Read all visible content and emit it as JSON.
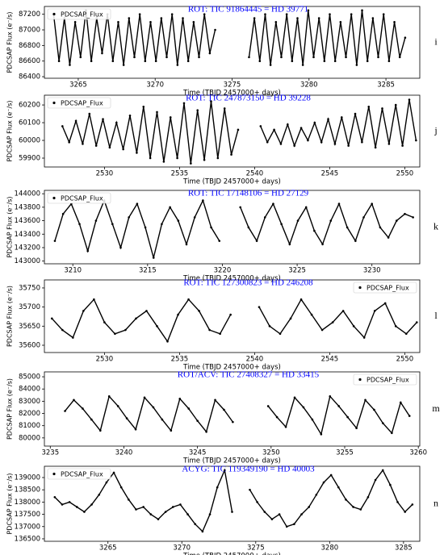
{
  "chart_data": [
    {
      "type": "line",
      "title": "ROT: TIC 91864445 = HD 39771",
      "title_color": "#0000ff",
      "panel_label": "i",
      "x_label": "Time (TBJD 2457000+ days)",
      "y_label": "PDCSAP Flux (e⁻/s)",
      "legend": "upper left",
      "xlim": [
        3262.8,
        3287.2
      ],
      "xticks": [
        3265,
        3270,
        3275,
        3280,
        3285
      ],
      "ylim": [
        86380,
        87300
      ],
      "yticks": [
        86400,
        86600,
        86800,
        87000,
        87200
      ],
      "x": [
        3263.4,
        3263.75,
        3264.1,
        3264.45,
        3264.8,
        3265.15,
        3265.5,
        3265.85,
        3266.2,
        3266.55,
        3266.9,
        3267.25,
        3267.6,
        3267.95,
        3268.3,
        3268.65,
        3269.0,
        3269.35,
        3269.7,
        3270.05,
        3270.4,
        3270.75,
        3271.1,
        3271.45,
        3271.8,
        3272.15,
        3272.5,
        3272.85,
        3273.2,
        3273.55,
        3273.9,
        3275.0,
        3276.1,
        3276.45,
        3276.8,
        3277.15,
        3277.5,
        3277.85,
        3278.2,
        3278.55,
        3278.9,
        3279.25,
        3279.6,
        3279.95,
        3280.3,
        3280.65,
        3281.0,
        3281.35,
        3281.7,
        3282.05,
        3282.4,
        3282.75,
        3283.1,
        3283.45,
        3283.8,
        3284.15,
        3284.5,
        3284.85,
        3285.2,
        3285.55,
        3285.9,
        3286.25
      ],
      "series": [
        {
          "name": "PDCSAP_Flux",
          "color": "#000000",
          "values": [
            87200,
            86600,
            87150,
            86550,
            87100,
            86650,
            87250,
            86600,
            87150,
            86700,
            87200,
            86600,
            87100,
            86550,
            87150,
            86650,
            87200,
            86600,
            87100,
            86600,
            87150,
            86650,
            87200,
            86550,
            87150,
            86600,
            87100,
            86650,
            87200,
            86700,
            87000,
            null,
            86650,
            87150,
            86600,
            87200,
            86550,
            87100,
            86650,
            87200,
            86600,
            87150,
            86550,
            87250,
            86650,
            87150,
            86600,
            87200,
            86600,
            87100,
            86650,
            87200,
            86550,
            87250,
            86600,
            87150,
            86650,
            87200,
            86600,
            87100,
            86650,
            86900
          ]
        }
      ]
    },
    {
      "type": "line",
      "title": "ROT: TIC 247873150 = HD 39228",
      "title_color": "#0000ff",
      "panel_label": "j",
      "x_label": "Time (TBJD 2457000+ days)",
      "y_label": "PDCSAP Flux (e⁻/s)",
      "legend": "upper left",
      "xlim": [
        2526.0,
        2551.0
      ],
      "xticks": [
        2530,
        2535,
        2540,
        2545,
        2550
      ],
      "ylim": [
        59850,
        60255
      ],
      "yticks": [
        59900,
        60000,
        60100,
        60200
      ],
      "x": [
        2527.2,
        2527.65,
        2528.1,
        2528.55,
        2529.0,
        2529.45,
        2529.9,
        2530.35,
        2530.8,
        2531.25,
        2531.7,
        2532.15,
        2532.6,
        2533.05,
        2533.5,
        2533.95,
        2534.4,
        2534.85,
        2535.3,
        2535.75,
        2536.2,
        2536.65,
        2537.1,
        2537.55,
        2538.0,
        2538.45,
        2538.9,
        2539.6,
        2540.4,
        2540.85,
        2541.3,
        2541.75,
        2542.2,
        2542.65,
        2543.1,
        2543.55,
        2544.0,
        2544.45,
        2544.9,
        2545.35,
        2545.8,
        2546.25,
        2546.7,
        2547.15,
        2547.6,
        2548.05,
        2548.5,
        2548.95,
        2549.4,
        2549.85,
        2550.3,
        2550.75
      ],
      "series": [
        {
          "name": "PDCSAP_Flux",
          "color": "#000000",
          "values": [
            60080,
            59990,
            60110,
            59980,
            60150,
            59970,
            60120,
            59960,
            60100,
            59950,
            60140,
            59930,
            60190,
            59900,
            60160,
            59880,
            60130,
            59900,
            60210,
            59870,
            60170,
            59890,
            60220,
            59900,
            60180,
            59920,
            60060,
            null,
            60080,
            59990,
            60060,
            59980,
            60090,
            59970,
            60070,
            60000,
            60100,
            59990,
            60120,
            59980,
            60130,
            59970,
            60150,
            59990,
            60190,
            59960,
            60180,
            59980,
            60200,
            59970,
            60230,
            60000
          ]
        }
      ]
    },
    {
      "type": "line",
      "title": "ROT: TIC 17148106 = HD 27129",
      "title_color": "#0000ff",
      "panel_label": "k",
      "x_label": "Time (TBJD 2457000+ days)",
      "y_label": "PDCSAP Flux (e⁻/s)",
      "legend": "upper left",
      "xlim": [
        3208.1,
        3233.2
      ],
      "xticks": [
        3210,
        3215,
        3220,
        3225,
        3230
      ],
      "ylim": [
        142960,
        144050
      ],
      "yticks": [
        143000,
        143200,
        143400,
        143600,
        143800,
        144000
      ],
      "x": [
        3208.8,
        3209.35,
        3209.9,
        3210.45,
        3211.0,
        3211.55,
        3212.1,
        3212.65,
        3213.2,
        3213.75,
        3214.3,
        3214.85,
        3215.4,
        3215.95,
        3216.5,
        3217.05,
        3217.6,
        3218.15,
        3218.7,
        3219.25,
        3219.8,
        3220.5,
        3221.2,
        3221.75,
        3222.3,
        3222.85,
        3223.4,
        3223.95,
        3224.5,
        3225.05,
        3225.6,
        3226.15,
        3226.7,
        3227.25,
        3227.8,
        3228.35,
        3228.9,
        3229.45,
        3230.0,
        3230.55,
        3231.1,
        3231.65,
        3232.2,
        3232.75
      ],
      "series": [
        {
          "name": "PDCSAP_Flux",
          "color": "#000000",
          "values": [
            143300,
            143700,
            143850,
            143550,
            143150,
            143600,
            143900,
            143550,
            143200,
            143650,
            143850,
            143500,
            143050,
            143550,
            143800,
            143600,
            143250,
            143650,
            143900,
            143500,
            143300,
            null,
            143800,
            143500,
            143300,
            143650,
            143850,
            143550,
            143250,
            143600,
            143800,
            143450,
            143250,
            143600,
            143850,
            143500,
            143300,
            143650,
            143850,
            143500,
            143350,
            143600,
            143700,
            143650
          ]
        }
      ]
    },
    {
      "type": "line",
      "title": "ROT: TIC 127300823 = HD 246208",
      "title_color": "#0000ff",
      "panel_label": "l",
      "x_label": "Time (TBJD 2457000+ days)",
      "y_label": "PDCSAP Flux (e⁻/s)",
      "legend": "upper right",
      "xlim": [
        2526.0,
        2551.0
      ],
      "xticks": [
        2530,
        2535,
        2540,
        2545,
        2550
      ],
      "ylim": [
        35581,
        35771
      ],
      "yticks": [
        35600,
        35650,
        35700,
        35750
      ],
      "x": [
        2526.5,
        2527.2,
        2527.9,
        2528.6,
        2529.3,
        2530.0,
        2530.7,
        2531.4,
        2532.1,
        2532.8,
        2533.5,
        2534.2,
        2534.9,
        2535.6,
        2536.3,
        2537.0,
        2537.7,
        2538.4,
        2539.5,
        2540.3,
        2541.0,
        2541.7,
        2542.4,
        2543.1,
        2543.8,
        2544.5,
        2545.2,
        2545.9,
        2546.6,
        2547.3,
        2548.0,
        2548.7,
        2549.4,
        2550.1,
        2550.8
      ],
      "series": [
        {
          "name": "PDCSAP_Flux",
          "color": "#000000",
          "values": [
            35670,
            35640,
            35620,
            35690,
            35720,
            35660,
            35630,
            35640,
            35670,
            35690,
            35650,
            35610,
            35680,
            35720,
            35690,
            35640,
            35630,
            35680,
            null,
            35700,
            35650,
            35630,
            35670,
            35720,
            35680,
            35640,
            35660,
            35690,
            35650,
            35620,
            35690,
            35710,
            35650,
            35630,
            35660
          ]
        }
      ]
    },
    {
      "type": "line",
      "title": "ROT/ACV: TIC 27408327 = HD 33415",
      "title_color": "#0000ff",
      "panel_label": "m",
      "x_label": "Time (TBJD 2457000+ days)",
      "y_label": "PDCSAP Flux (e⁻/s)",
      "legend": "upper right",
      "xlim": [
        3234.6,
        3260.1
      ],
      "xticks": [
        3235,
        3240,
        3245,
        3250,
        3255,
        3260
      ],
      "ylim": [
        79330,
        85400
      ],
      "yticks": [
        80000,
        81000,
        82000,
        83000,
        84000,
        85000
      ],
      "x": [
        3236.0,
        3236.6,
        3237.2,
        3237.8,
        3238.4,
        3239.0,
        3239.6,
        3240.2,
        3240.8,
        3241.4,
        3242.0,
        3242.6,
        3243.2,
        3243.8,
        3244.4,
        3245.0,
        3245.6,
        3246.2,
        3246.8,
        3247.4,
        3248.8,
        3249.8,
        3250.4,
        3251.0,
        3251.6,
        3252.2,
        3252.8,
        3253.4,
        3254.0,
        3254.6,
        3255.2,
        3255.8,
        3256.4,
        3257.0,
        3257.6,
        3258.2,
        3258.8,
        3259.4
      ],
      "series": [
        {
          "name": "PDCSAP_Flux",
          "color": "#000000",
          "values": [
            82200,
            83100,
            82400,
            81500,
            80600,
            83400,
            82600,
            81600,
            80700,
            83300,
            82500,
            81500,
            80600,
            83200,
            82400,
            81400,
            80500,
            83100,
            82300,
            81300,
            null,
            82600,
            81700,
            80900,
            83300,
            82500,
            81500,
            80300,
            83400,
            82600,
            81700,
            80800,
            83100,
            82300,
            81200,
            80400,
            82900,
            81800
          ]
        }
      ]
    },
    {
      "type": "line",
      "title": "ACYG: TIC 119349190 = HD 40003",
      "title_color": "#0000ff",
      "panel_label": "n",
      "x_label": "Time (TBJD 2457000+ days)",
      "y_label": "PDCSAP Flux (e⁻/s)",
      "legend": "upper left",
      "xlim": [
        3260.7,
        3286.1
      ],
      "xticks": [
        3265,
        3270,
        3275,
        3280,
        3285
      ],
      "ylim": [
        136400,
        139460
      ],
      "yticks": [
        136500,
        137000,
        137500,
        138000,
        138500,
        139000
      ],
      "x": [
        3261.4,
        3261.9,
        3262.4,
        3262.9,
        3263.4,
        3263.9,
        3264.4,
        3264.9,
        3265.4,
        3265.9,
        3266.4,
        3266.9,
        3267.4,
        3267.9,
        3268.4,
        3268.9,
        3269.4,
        3269.9,
        3270.4,
        3270.9,
        3271.4,
        3271.9,
        3272.4,
        3272.9,
        3273.4,
        3274.0,
        3274.6,
        3275.1,
        3275.6,
        3276.1,
        3276.6,
        3277.1,
        3277.6,
        3278.1,
        3278.6,
        3279.1,
        3279.6,
        3280.1,
        3280.6,
        3281.1,
        3281.6,
        3282.1,
        3282.6,
        3283.1,
        3283.6,
        3284.1,
        3284.6,
        3285.1,
        3285.6
      ],
      "series": [
        {
          "name": "PDCSAP_Flux",
          "color": "#000000",
          "values": [
            138200,
            137900,
            138000,
            137800,
            137600,
            137900,
            138300,
            138800,
            139200,
            138600,
            138100,
            137700,
            137800,
            137500,
            137300,
            137600,
            137800,
            137900,
            137500,
            137100,
            136800,
            137500,
            138600,
            139300,
            137600,
            null,
            138500,
            138000,
            137600,
            137300,
            137500,
            137000,
            137100,
            137500,
            137800,
            138300,
            138800,
            139100,
            138600,
            138100,
            137800,
            137700,
            138200,
            138900,
            139300,
            138700,
            138000,
            137600,
            137900
          ]
        }
      ]
    }
  ]
}
